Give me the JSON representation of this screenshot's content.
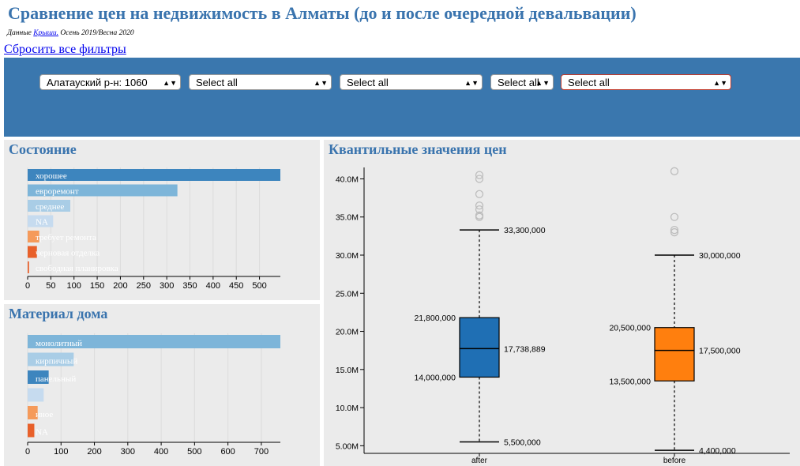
{
  "header": {
    "title": "Сравнение цен на недвижимость в Алматы (до и после очередной девальвации)",
    "subtitle_prefix": "Данные ",
    "subtitle_link": "Крыши.",
    "subtitle_suffix": " Осень 2019/Весна 2020",
    "reset_label": "Сбросить все фильтры"
  },
  "filters": [
    {
      "value": "Алатауский р-н: 1060"
    },
    {
      "value": "Select all"
    },
    {
      "value": "Select all"
    },
    {
      "value": "Select all"
    },
    {
      "value": "Select all"
    }
  ],
  "panels": {
    "condition_title": "Состояние",
    "material_title": "Материал дома",
    "quantile_title": "Квантильные значения цен"
  },
  "chart_data": [
    {
      "type": "bar",
      "orientation": "horizontal",
      "title": "Состояние",
      "categories": [
        "хорошее",
        "евроремонт",
        "среднее",
        "NA",
        "требует ремонта",
        "черновая отделка",
        "свободная планировка"
      ],
      "values": [
        545,
        323,
        92,
        55,
        25,
        20,
        3
      ],
      "colors": [
        "#3d85be",
        "#7db5d9",
        "#a9cde6",
        "#c6dbef",
        "#f59a5a",
        "#e8602a",
        "#e8602a"
      ],
      "xlim": [
        0,
        545
      ],
      "ticks": [
        0,
        50,
        100,
        150,
        200,
        250,
        300,
        350,
        400,
        450,
        500
      ]
    },
    {
      "type": "bar",
      "orientation": "horizontal",
      "title": "Материал дома",
      "categories": [
        "монолитный",
        "кирпичный",
        "панельный",
        "",
        "иное",
        "NA"
      ],
      "values": [
        757,
        138,
        63,
        48,
        30,
        20
      ],
      "colors": [
        "#7db5d9",
        "#a9cde6",
        "#3d85be",
        "#c6dbef",
        "#f59a5a",
        "#e8602a"
      ],
      "xlim": [
        0,
        757
      ],
      "ticks": [
        0,
        100,
        200,
        300,
        400,
        500,
        600,
        700
      ]
    },
    {
      "type": "box",
      "title": "Квантильные значения цен",
      "ylim": [
        4000000,
        41500000
      ],
      "yticks": [
        5000000,
        10000000,
        15000000,
        20000000,
        25000000,
        30000000,
        35000000,
        40000000
      ],
      "ytick_labels": [
        "5.00M",
        "10.0M",
        "15.0M",
        "20.0M",
        "25.0M",
        "30.0M",
        "35.0M",
        "40.0M"
      ],
      "series": [
        {
          "name": "after",
          "color": "#1f6fb4",
          "min": 5500000,
          "q1": 14000000,
          "median": 17738889,
          "q3": 21800000,
          "max": 33300000,
          "labels": {
            "min": "5,500,000",
            "q1": "14,000,000",
            "median": "17,738,889",
            "q3": "21,800,000",
            "max": "33,300,000"
          },
          "outliers": [
            35000000,
            35200000,
            36000000,
            36500000,
            38000000,
            40000000,
            40500000
          ]
        },
        {
          "name": "before",
          "color": "#ff7f0e",
          "min": 4400000,
          "q1": 13500000,
          "median": 17500000,
          "q3": 20500000,
          "max": 30000000,
          "labels": {
            "min": "4,400,000",
            "q1": "13,500,000",
            "median": "17,500,000",
            "q3": "20,500,000",
            "max": "30,000,000"
          },
          "outliers": [
            33000000,
            33300000,
            35000000,
            41000000
          ]
        }
      ]
    }
  ]
}
